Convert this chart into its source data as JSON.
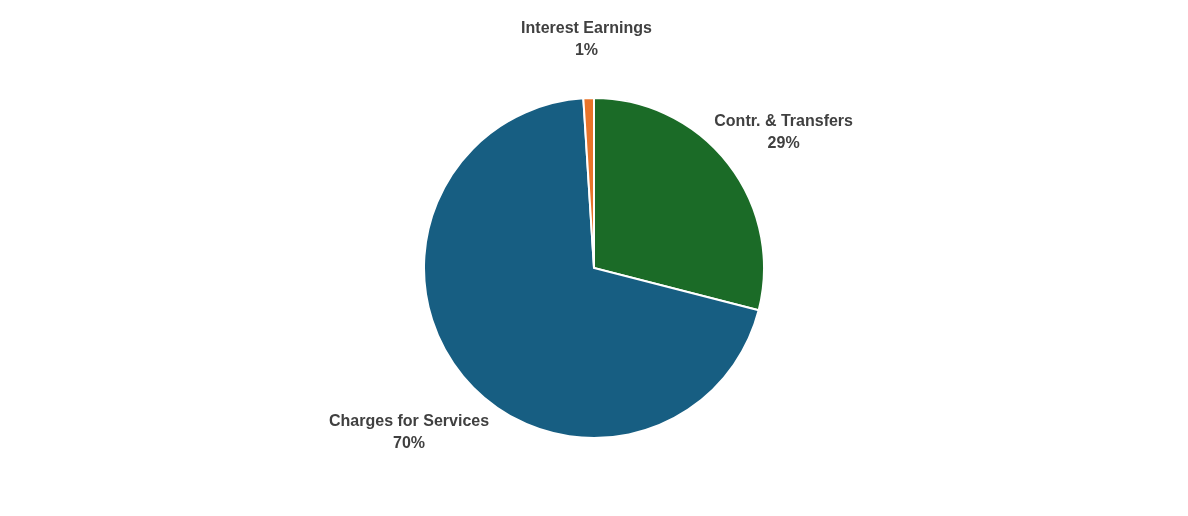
{
  "chart_data": {
    "type": "pie",
    "categories": [
      "Contr. & Transfers",
      "Charges for Services",
      "Interest Earnings"
    ],
    "values": [
      29,
      70,
      1
    ],
    "colors": [
      "#1b6b27",
      "#175e82",
      "#e8742a"
    ],
    "value_labels": [
      "29%",
      "70%",
      "1%"
    ]
  }
}
